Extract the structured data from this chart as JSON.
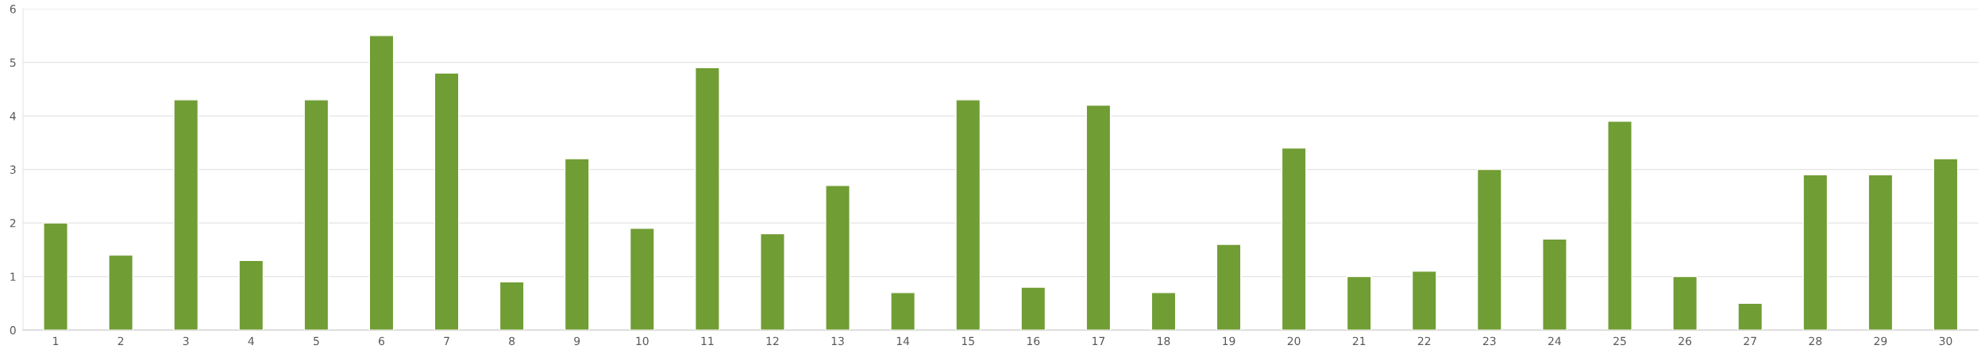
{
  "chart_data": {
    "type": "bar",
    "categories": [
      "1",
      "2",
      "3",
      "4",
      "5",
      "6",
      "7",
      "8",
      "9",
      "10",
      "11",
      "12",
      "13",
      "14",
      "15",
      "16",
      "17",
      "18",
      "19",
      "20",
      "21",
      "22",
      "23",
      "24",
      "25",
      "26",
      "27",
      "28",
      "29",
      "30"
    ],
    "values": [
      2.0,
      1.4,
      4.3,
      1.3,
      4.3,
      5.5,
      4.8,
      0.9,
      3.2,
      1.9,
      4.9,
      1.8,
      2.7,
      0.7,
      4.3,
      0.8,
      4.2,
      0.7,
      1.6,
      3.4,
      1.0,
      1.1,
      3.0,
      1.7,
      3.9,
      1.0,
      0.5,
      2.9,
      2.9,
      3.2
    ],
    "color": "#709d34",
    "ylim": [
      0,
      6
    ],
    "yticks": [
      0,
      1,
      2,
      3,
      4,
      5,
      6
    ],
    "grid": "y"
  }
}
